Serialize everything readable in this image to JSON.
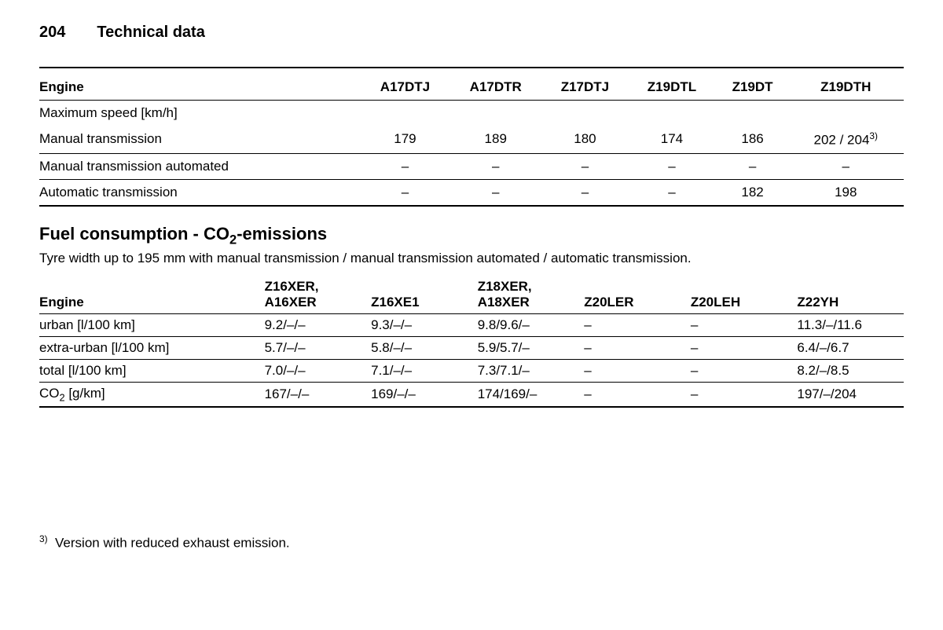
{
  "header": {
    "page_number": "204",
    "section_title": "Technical data"
  },
  "table1": {
    "label": "Engine",
    "columns": [
      "A17DTJ",
      "A17DTR",
      "Z17DTJ",
      "Z19DTL",
      "Z19DT",
      "Z19DTH"
    ],
    "group_row": "Maximum speed [km/h]",
    "rows": [
      {
        "label": "Manual transmission",
        "values": [
          "179",
          "189",
          "180",
          "174",
          "186",
          "202 / 204"
        ],
        "sup_last": "3)"
      },
      {
        "label": "Manual transmission automated",
        "values": [
          "–",
          "–",
          "–",
          "–",
          "–",
          "–"
        ]
      },
      {
        "label": "Automatic transmission",
        "values": [
          "–",
          "–",
          "–",
          "–",
          "182",
          "198"
        ]
      }
    ]
  },
  "section": {
    "title_prefix": "Fuel consumption - CO",
    "title_sub": "2",
    "title_suffix": "-emissions",
    "subtitle": "Tyre width up to 195 mm with manual transmission / manual transmission automated / automatic transmission."
  },
  "table2": {
    "label": "Engine",
    "columns": [
      {
        "line1": "Z16XER,",
        "line2": "A16XER"
      },
      {
        "line1": "",
        "line2": "Z16XE1"
      },
      {
        "line1": "Z18XER,",
        "line2": "A18XER"
      },
      {
        "line1": "",
        "line2": "Z20LER"
      },
      {
        "line1": "",
        "line2": "Z20LEH"
      },
      {
        "line1": "",
        "line2": "Z22YH"
      }
    ],
    "rows": [
      {
        "label": "urban [l/100 km]",
        "values": [
          "9.2/–/–",
          "9.3/–/–",
          "9.8/9.6/–",
          "–",
          "–",
          "11.3/–/11.6"
        ]
      },
      {
        "label": "extra-urban [l/100 km]",
        "values": [
          "5.7/–/–",
          "5.8/–/–",
          "5.9/5.7/–",
          "–",
          "–",
          "6.4/–/6.7"
        ]
      },
      {
        "label": "total [l/100 km]",
        "values": [
          "7.0/–/–",
          "7.1/–/–",
          "7.3/7.1/–",
          "–",
          "–",
          "8.2/–/8.5"
        ]
      },
      {
        "label_prefix": "CO",
        "label_sub": "2",
        "label_suffix": " [g/km]",
        "values": [
          "167/–/–",
          "169/–/–",
          "174/169/–",
          "–",
          "–",
          "197/–/204"
        ]
      }
    ]
  },
  "footnote": {
    "marker": "3)",
    "text": "Version with reduced exhaust emission."
  }
}
